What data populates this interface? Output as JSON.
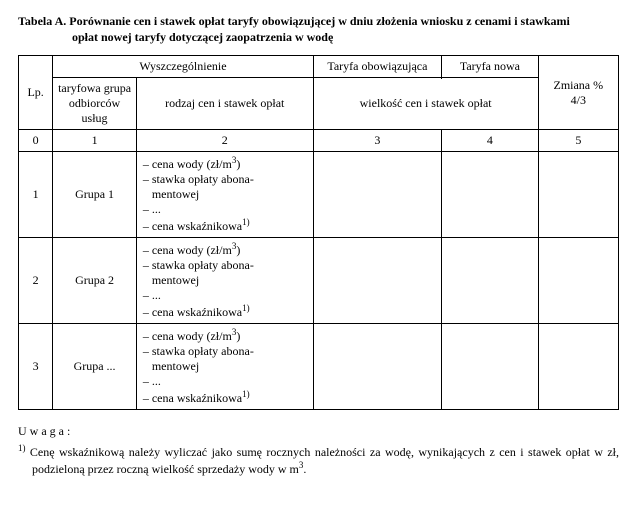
{
  "title": {
    "line1": "Tabela A. Porównanie cen i stawek opłat taryfy obowiązującej w dniu złożenia wniosku z cenami i stawkami",
    "line2": "opłat nowej taryfy dotyczącej zaopatrzenia w wodę"
  },
  "headers": {
    "wyszcz": "Wyszczególnienie",
    "lp": "Lp.",
    "grupa": "taryfowa grupa odbiorców usług",
    "rodzaj": "rodzaj cen i stawek opłat",
    "taryfa_ob": "Taryfa obowiązująca",
    "taryfa_nowa": "Taryfa nowa",
    "zmiana": "Zmiana %",
    "zmiana_sub": "4/3",
    "wielkosc": "wielkość cen i stawek opłat",
    "num0": "0",
    "num1": "1",
    "num2": "2",
    "num3": "3",
    "num4": "4",
    "num5": "5"
  },
  "rows": [
    {
      "lp": "1",
      "grupa": "Grupa 1"
    },
    {
      "lp": "2",
      "grupa": "Grupa 2"
    },
    {
      "lp": "3",
      "grupa": "Grupa ..."
    }
  ],
  "rodzaj_lines": {
    "l1a": "– cena wody (zł/m",
    "l1b": ")",
    "sup3": "3",
    "l2": "– stawka opłaty abona-",
    "l3": "   mentowej",
    "l4": "– ...",
    "l5a": "– cena wskaźnikowa",
    "sup1": "1)"
  },
  "uwaga_label": "Uwaga:",
  "note_sup": "1)",
  "note_text": " Cenę wskaźnikową należy wyliczać jako sumę rocznych należności za wodę, wynikających z cen i stawek opłat w zł, podzieloną przez roczną wielkość sprzedaży wody w m",
  "note_sup2": "3",
  "note_tail": "."
}
